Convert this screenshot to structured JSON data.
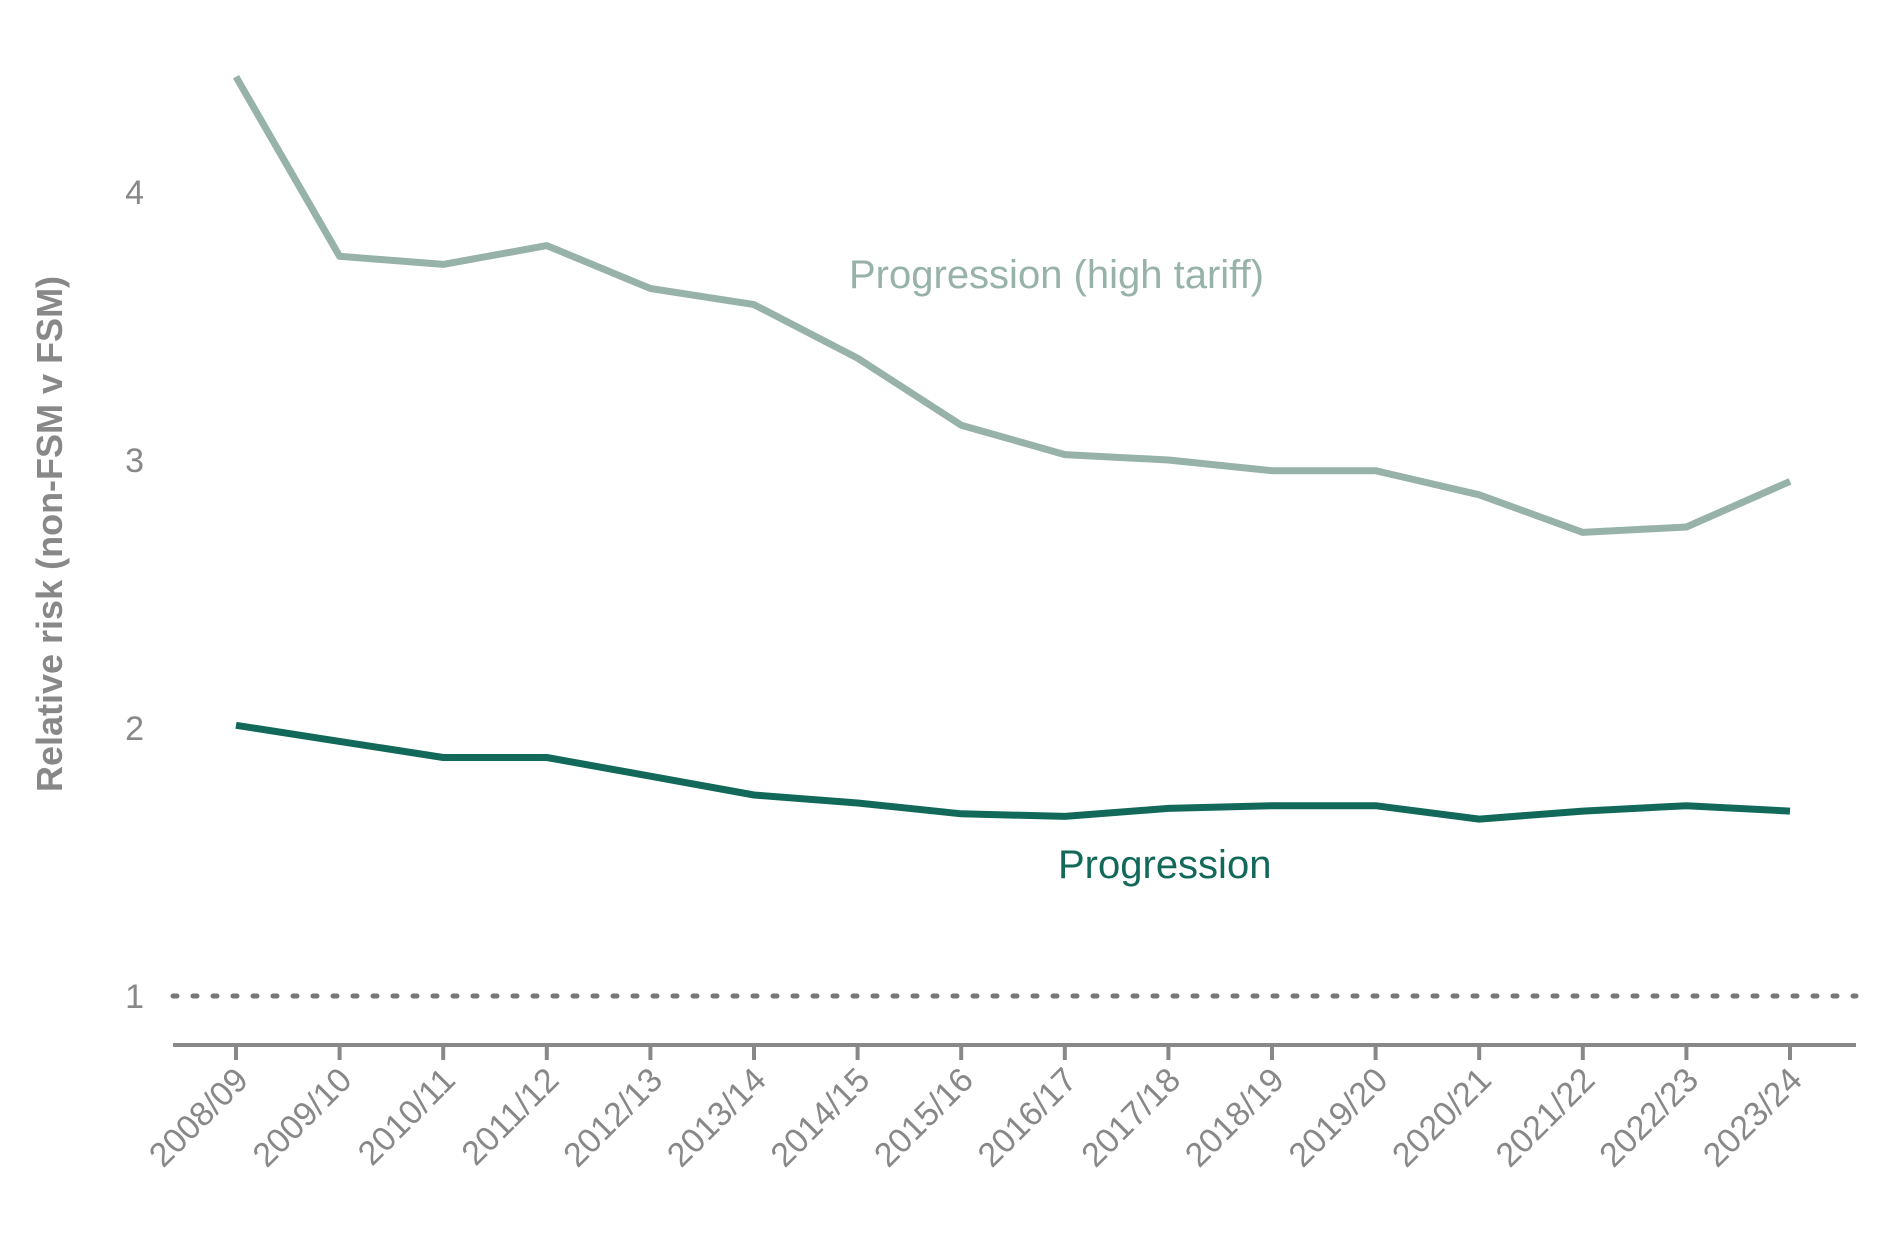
{
  "chart_data": {
    "type": "line",
    "ylabel": "Relative risk (non-FSM v FSM)",
    "xlabel": "",
    "ylim": [
      0.8,
      4.6
    ],
    "yticks": [
      1,
      2,
      3,
      4
    ],
    "grid": false,
    "legend": "inline labels",
    "reference_line": {
      "value": 1,
      "style": "dotted"
    },
    "categories": [
      "2008/09",
      "2009/10",
      "2010/11",
      "2011/12",
      "2012/13",
      "2013/14",
      "2014/15",
      "2015/16",
      "2016/17",
      "2017/18",
      "2018/19",
      "2019/20",
      "2020/21",
      "2021/22",
      "2022/23",
      "2023/24"
    ],
    "series": [
      {
        "name": "Progression (high tariff)",
        "color": "#97b2a8",
        "values": [
          4.43,
          3.76,
          3.73,
          3.8,
          3.64,
          3.58,
          3.38,
          3.13,
          3.02,
          3.0,
          2.96,
          2.96,
          2.87,
          2.73,
          2.75,
          2.92
        ]
      },
      {
        "name": "Progression",
        "color": "#12695a",
        "values": [
          2.01,
          1.95,
          1.89,
          1.89,
          1.82,
          1.75,
          1.72,
          1.68,
          1.67,
          1.7,
          1.71,
          1.71,
          1.66,
          1.69,
          1.71,
          1.69
        ]
      }
    ]
  }
}
